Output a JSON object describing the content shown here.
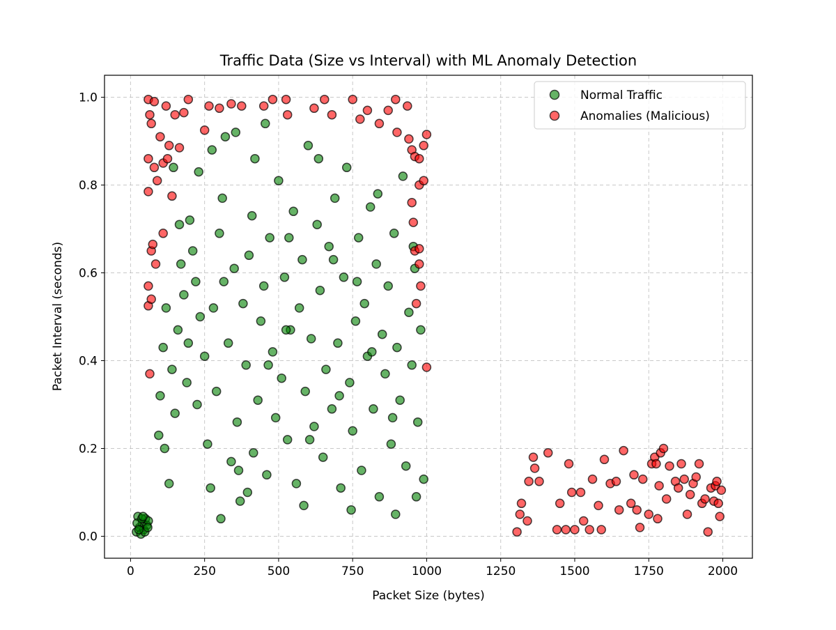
{
  "chart_data": {
    "type": "scatter",
    "title": "Traffic Data (Size vs Interval) with ML Anomaly Detection",
    "xlabel": "Packet Size (bytes)",
    "ylabel": "Packet Interval (seconds)",
    "xlim": [
      -88,
      2100
    ],
    "ylim": [
      -0.05,
      1.05
    ],
    "xticks": [
      0,
      250,
      500,
      750,
      1000,
      1250,
      1500,
      1750,
      2000
    ],
    "xtick_labels": [
      "0",
      "250",
      "500",
      "750",
      "1000",
      "1250",
      "1500",
      "1750",
      "2000"
    ],
    "yticks": [
      0.0,
      0.2,
      0.4,
      0.6,
      0.8,
      1.0
    ],
    "ytick_labels": [
      "0.0",
      "0.2",
      "0.4",
      "0.6",
      "0.8",
      "1.0"
    ],
    "grid": true,
    "legend_position": "top-right",
    "series": [
      {
        "name": "Normal Traffic",
        "color": "#008000",
        "points": [
          [
            20,
            0.01
          ],
          [
            30,
            0.02
          ],
          [
            40,
            0.03
          ],
          [
            50,
            0.04
          ],
          [
            25,
            0.045
          ],
          [
            35,
            0.005
          ],
          [
            45,
            0.015
          ],
          [
            55,
            0.025
          ],
          [
            60,
            0.035
          ],
          [
            22,
            0.03
          ],
          [
            38,
            0.04
          ],
          [
            48,
            0.01
          ],
          [
            58,
            0.02
          ],
          [
            28,
            0.015
          ],
          [
            42,
            0.045
          ],
          [
            95,
            0.23
          ],
          [
            100,
            0.32
          ],
          [
            110,
            0.43
          ],
          [
            120,
            0.52
          ],
          [
            130,
            0.12
          ],
          [
            140,
            0.38
          ],
          [
            150,
            0.28
          ],
          [
            160,
            0.47
          ],
          [
            170,
            0.62
          ],
          [
            180,
            0.55
          ],
          [
            190,
            0.35
          ],
          [
            200,
            0.72
          ],
          [
            210,
            0.65
          ],
          [
            220,
            0.58
          ],
          [
            230,
            0.83
          ],
          [
            250,
            0.41
          ],
          [
            260,
            0.21
          ],
          [
            270,
            0.11
          ],
          [
            280,
            0.52
          ],
          [
            290,
            0.33
          ],
          [
            300,
            0.69
          ],
          [
            310,
            0.77
          ],
          [
            320,
            0.91
          ],
          [
            330,
            0.44
          ],
          [
            340,
            0.17
          ],
          [
            350,
            0.61
          ],
          [
            360,
            0.26
          ],
          [
            370,
            0.08
          ],
          [
            380,
            0.53
          ],
          [
            390,
            0.39
          ],
          [
            400,
            0.64
          ],
          [
            410,
            0.73
          ],
          [
            420,
            0.86
          ],
          [
            430,
            0.31
          ],
          [
            440,
            0.49
          ],
          [
            450,
            0.57
          ],
          [
            460,
            0.14
          ],
          [
            470,
            0.68
          ],
          [
            480,
            0.42
          ],
          [
            490,
            0.27
          ],
          [
            500,
            0.81
          ],
          [
            510,
            0.36
          ],
          [
            520,
            0.59
          ],
          [
            530,
            0.22
          ],
          [
            540,
            0.47
          ],
          [
            550,
            0.74
          ],
          [
            560,
            0.12
          ],
          [
            570,
            0.52
          ],
          [
            580,
            0.63
          ],
          [
            590,
            0.33
          ],
          [
            600,
            0.89
          ],
          [
            610,
            0.45
          ],
          [
            620,
            0.25
          ],
          [
            630,
            0.71
          ],
          [
            640,
            0.56
          ],
          [
            650,
            0.18
          ],
          [
            660,
            0.38
          ],
          [
            670,
            0.66
          ],
          [
            680,
            0.29
          ],
          [
            690,
            0.77
          ],
          [
            700,
            0.44
          ],
          [
            710,
            0.11
          ],
          [
            720,
            0.59
          ],
          [
            730,
            0.84
          ],
          [
            740,
            0.35
          ],
          [
            750,
            0.24
          ],
          [
            760,
            0.49
          ],
          [
            770,
            0.68
          ],
          [
            780,
            0.15
          ],
          [
            790,
            0.53
          ],
          [
            800,
            0.41
          ],
          [
            810,
            0.75
          ],
          [
            820,
            0.29
          ],
          [
            830,
            0.62
          ],
          [
            840,
            0.09
          ],
          [
            850,
            0.46
          ],
          [
            860,
            0.37
          ],
          [
            870,
            0.57
          ],
          [
            880,
            0.21
          ],
          [
            890,
            0.69
          ],
          [
            900,
            0.43
          ],
          [
            910,
            0.31
          ],
          [
            920,
            0.82
          ],
          [
            930,
            0.16
          ],
          [
            940,
            0.51
          ],
          [
            950,
            0.39
          ],
          [
            960,
            0.61
          ],
          [
            970,
            0.26
          ],
          [
            980,
            0.47
          ],
          [
            990,
            0.13
          ],
          [
            115,
            0.2
          ],
          [
            165,
            0.71
          ],
          [
            235,
            0.5
          ],
          [
            305,
            0.04
          ],
          [
            355,
            0.92
          ],
          [
            415,
            0.19
          ],
          [
            465,
            0.39
          ],
          [
            535,
            0.68
          ],
          [
            585,
            0.07
          ],
          [
            635,
            0.86
          ],
          [
            705,
            0.32
          ],
          [
            765,
            0.58
          ],
          [
            835,
            0.78
          ],
          [
            895,
            0.05
          ],
          [
            955,
            0.66
          ],
          [
            145,
            0.84
          ],
          [
            225,
            0.3
          ],
          [
            315,
            0.58
          ],
          [
            395,
            0.1
          ],
          [
            455,
            0.94
          ],
          [
            525,
            0.47
          ],
          [
            605,
            0.22
          ],
          [
            685,
            0.63
          ],
          [
            745,
            0.06
          ],
          [
            815,
            0.42
          ],
          [
            885,
            0.27
          ],
          [
            965,
            0.09
          ],
          [
            195,
            0.44
          ],
          [
            275,
            0.88
          ],
          [
            365,
            0.15
          ]
        ]
      },
      {
        "name": "Anomalies (Malicious)",
        "color": "#ff0000",
        "points": [
          [
            60,
            0.995
          ],
          [
            65,
            0.96
          ],
          [
            70,
            0.94
          ],
          [
            80,
            0.99
          ],
          [
            100,
            0.91
          ],
          [
            120,
            0.98
          ],
          [
            130,
            0.89
          ],
          [
            150,
            0.96
          ],
          [
            165,
            0.885
          ],
          [
            180,
            0.965
          ],
          [
            195,
            0.995
          ],
          [
            250,
            0.925
          ],
          [
            265,
            0.98
          ],
          [
            300,
            0.975
          ],
          [
            340,
            0.985
          ],
          [
            375,
            0.98
          ],
          [
            450,
            0.98
          ],
          [
            480,
            0.995
          ],
          [
            525,
            0.995
          ],
          [
            530,
            0.96
          ],
          [
            620,
            0.975
          ],
          [
            655,
            0.995
          ],
          [
            680,
            0.96
          ],
          [
            750,
            0.995
          ],
          [
            775,
            0.95
          ],
          [
            800,
            0.97
          ],
          [
            840,
            0.94
          ],
          [
            870,
            0.97
          ],
          [
            895,
            0.995
          ],
          [
            935,
            0.98
          ],
          [
            60,
            0.86
          ],
          [
            70,
            0.65
          ],
          [
            80,
            0.84
          ],
          [
            90,
            0.81
          ],
          [
            110,
            0.85
          ],
          [
            125,
            0.86
          ],
          [
            140,
            0.775
          ],
          [
            85,
            0.62
          ],
          [
            110,
            0.69
          ],
          [
            60,
            0.525
          ],
          [
            65,
            0.37
          ],
          [
            60,
            0.785
          ],
          [
            75,
            0.665
          ],
          [
            60,
            0.57
          ],
          [
            70,
            0.54
          ],
          [
            900,
            0.92
          ],
          [
            940,
            0.905
          ],
          [
            950,
            0.88
          ],
          [
            960,
            0.865
          ],
          [
            975,
            0.86
          ],
          [
            990,
            0.89
          ],
          [
            1000,
            0.915
          ],
          [
            975,
            0.8
          ],
          [
            990,
            0.81
          ],
          [
            950,
            0.76
          ],
          [
            955,
            0.715
          ],
          [
            960,
            0.65
          ],
          [
            975,
            0.62
          ],
          [
            980,
            0.57
          ],
          [
            965,
            0.53
          ],
          [
            1000,
            0.385
          ],
          [
            975,
            0.655
          ],
          [
            1305,
            0.01
          ],
          [
            1315,
            0.05
          ],
          [
            1320,
            0.075
          ],
          [
            1340,
            0.035
          ],
          [
            1345,
            0.125
          ],
          [
            1360,
            0.18
          ],
          [
            1365,
            0.155
          ],
          [
            1380,
            0.125
          ],
          [
            1410,
            0.19
          ],
          [
            1440,
            0.015
          ],
          [
            1450,
            0.075
          ],
          [
            1470,
            0.015
          ],
          [
            1480,
            0.165
          ],
          [
            1490,
            0.1
          ],
          [
            1500,
            0.015
          ],
          [
            1520,
            0.1
          ],
          [
            1530,
            0.035
          ],
          [
            1550,
            0.015
          ],
          [
            1560,
            0.13
          ],
          [
            1580,
            0.07
          ],
          [
            1590,
            0.015
          ],
          [
            1600,
            0.175
          ],
          [
            1620,
            0.12
          ],
          [
            1640,
            0.125
          ],
          [
            1650,
            0.06
          ],
          [
            1665,
            0.195
          ],
          [
            1690,
            0.075
          ],
          [
            1700,
            0.14
          ],
          [
            1710,
            0.06
          ],
          [
            1720,
            0.02
          ],
          [
            1730,
            0.13
          ],
          [
            1750,
            0.05
          ],
          [
            1760,
            0.165
          ],
          [
            1770,
            0.18
          ],
          [
            1775,
            0.165
          ],
          [
            1780,
            0.04
          ],
          [
            1785,
            0.115
          ],
          [
            1790,
            0.19
          ],
          [
            1800,
            0.2
          ],
          [
            1810,
            0.085
          ],
          [
            1820,
            0.16
          ],
          [
            1840,
            0.125
          ],
          [
            1850,
            0.11
          ],
          [
            1860,
            0.165
          ],
          [
            1870,
            0.13
          ],
          [
            1880,
            0.05
          ],
          [
            1890,
            0.095
          ],
          [
            1900,
            0.12
          ],
          [
            1910,
            0.135
          ],
          [
            1920,
            0.165
          ],
          [
            1930,
            0.075
          ],
          [
            1940,
            0.085
          ],
          [
            1950,
            0.01
          ],
          [
            1960,
            0.11
          ],
          [
            1970,
            0.08
          ],
          [
            1975,
            0.115
          ],
          [
            1980,
            0.125
          ],
          [
            1985,
            0.075
          ],
          [
            1990,
            0.045
          ],
          [
            1995,
            0.105
          ]
        ]
      }
    ]
  }
}
